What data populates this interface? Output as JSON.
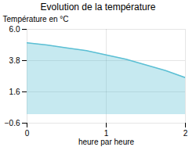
{
  "chart_data": {
    "type": "area",
    "title": "Evolution de la température",
    "xlabel": "heure par heure",
    "ylabel": "Température en °C",
    "x": [
      0,
      0.25,
      0.5,
      0.75,
      1.0,
      1.25,
      1.5,
      1.75,
      2.0
    ],
    "values": [
      5.05,
      4.9,
      4.7,
      4.5,
      4.2,
      3.9,
      3.5,
      3.1,
      2.6
    ],
    "color": "#5bbfd4",
    "xlim": [
      0,
      2
    ],
    "ylim": [
      -0.6,
      6.0
    ],
    "xticks": [
      0,
      1,
      2
    ],
    "yticks": [
      -0.6,
      1.6,
      3.8,
      {
        "value": 6.0,
        "label": "6.0"
      }
    ],
    "grid": true
  }
}
